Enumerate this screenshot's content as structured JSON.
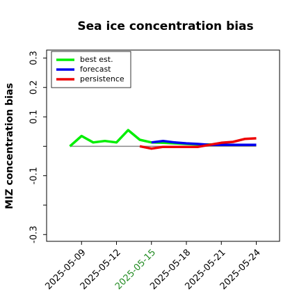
{
  "chart_data": {
    "type": "line",
    "title": "Sea ice concentration bias",
    "y_label": "MIZ concentration bias",
    "x": [
      "2025-05-08",
      "2025-05-09",
      "2025-05-10",
      "2025-05-11",
      "2025-05-12",
      "2025-05-13",
      "2025-05-14",
      "2025-05-15",
      "2025-05-16",
      "2025-05-17",
      "2025-05-18",
      "2025-05-19",
      "2025-05-20",
      "2025-05-21",
      "2025-05-22",
      "2025-05-23",
      "2025-05-24"
    ],
    "series": [
      {
        "name": "best est.",
        "color": "#00ee00",
        "values": [
          0,
          0.035,
          0.013,
          0.018,
          0.013,
          0.055,
          0.022,
          0.013,
          0.012,
          0.01,
          0.008,
          0.006,
          0.006,
          0.006,
          0.005,
          0.005,
          0.005
        ]
      },
      {
        "name": "forecast",
        "color": "#0000ee",
        "values": [
          null,
          null,
          null,
          null,
          null,
          null,
          null,
          0.013,
          0.018,
          0.013,
          0.01,
          0.008,
          0.005,
          0.005,
          0.005,
          0.005,
          0.005
        ]
      },
      {
        "name": "persistence",
        "color": "#ee0000",
        "values": [
          null,
          null,
          null,
          null,
          null,
          null,
          0,
          -0.008,
          -0.002,
          -0.002,
          -0.002,
          -0.002,
          0.005,
          0.012,
          0.015,
          0.025,
          0.027
        ]
      }
    ],
    "hline": 0,
    "hline_color": "#888888",
    "xlim": [
      "2025-05-06",
      "2025-05-26"
    ],
    "xticks": [
      "2025-05-09",
      "2025-05-12",
      "2025-05-15",
      "2025-05-18",
      "2025-05-21",
      "2025-05-24"
    ],
    "highlight_xtick": "2025-05-15",
    "highlight_color": "#228b22",
    "ylim": [
      -0.323,
      0.327
    ],
    "yticks": [
      -0.3,
      {
        "value": -0.2,
        "label": null
      },
      -0.1,
      {
        "value": 0,
        "label": null
      },
      0.1,
      0.2,
      0.3
    ],
    "legend": "upper left"
  }
}
